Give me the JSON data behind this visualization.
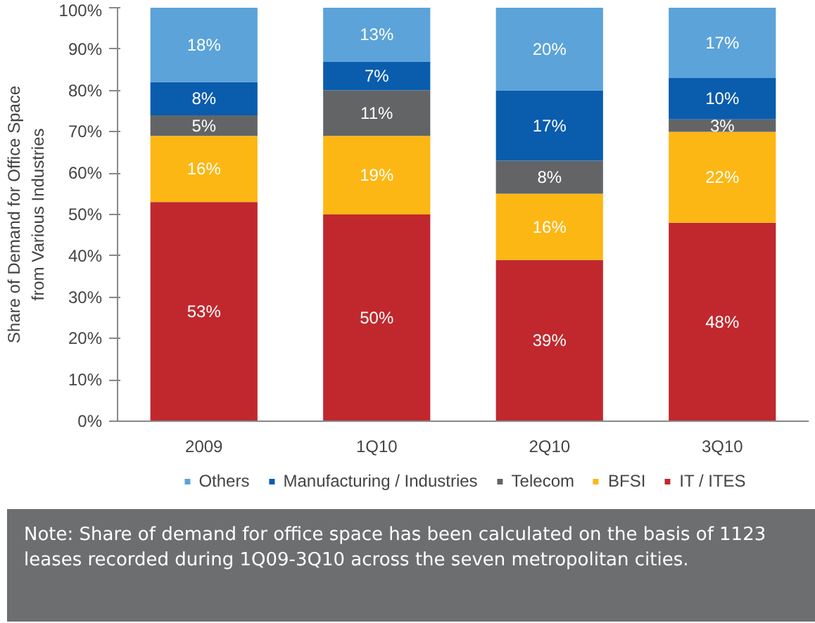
{
  "chart_data": {
    "type": "bar",
    "stacked": true,
    "ylabel": "Share of Demand for Office Space\nfrom Various Industries",
    "categories": [
      "2009",
      "1Q10",
      "2Q10",
      "3Q10"
    ],
    "series": [
      {
        "name": "IT / ITES",
        "color": "#c0282d",
        "values": [
          53,
          50,
          39,
          48
        ],
        "value_labels": [
          "53%",
          "50%",
          "39%",
          "48%"
        ]
      },
      {
        "name": "BFSI",
        "color": "#fdb714",
        "values": [
          16,
          19,
          16,
          22
        ],
        "value_labels": [
          "16%",
          "19%",
          "16%",
          "22%"
        ]
      },
      {
        "name": "Telecom",
        "color": "#636466",
        "values": [
          5,
          11,
          8,
          3
        ],
        "value_labels": [
          "5%",
          "11%",
          "8%",
          "3%"
        ]
      },
      {
        "name": "Manufacturing / Industries",
        "color": "#0a5cad",
        "values": [
          8,
          7,
          17,
          10
        ],
        "value_labels": [
          "8%",
          "7%",
          "17%",
          "10%"
        ]
      },
      {
        "name": "Others",
        "color": "#5ba3d9",
        "values": [
          18,
          13,
          20,
          17
        ],
        "value_labels": [
          "18%",
          "13%",
          "20%",
          "17%"
        ]
      }
    ],
    "ylim": [
      0,
      100
    ],
    "yticks": [
      {
        "value": 0,
        "label": "0%"
      },
      {
        "value": 10,
        "label": "10%"
      },
      {
        "value": 20,
        "label": "20%"
      },
      {
        "value": 30,
        "label": "30%"
      },
      {
        "value": 40,
        "label": "40%"
      },
      {
        "value": 50,
        "label": "50%"
      },
      {
        "value": 60,
        "label": "60%"
      },
      {
        "value": 70,
        "label": "70%"
      },
      {
        "value": 80,
        "label": "80%"
      },
      {
        "value": 90,
        "label": "90%"
      },
      {
        "value": 100,
        "label": "100%"
      }
    ],
    "grid": false,
    "legend": "bottom",
    "annotations": [
      "Note: Share of demand for office space has been calculated on the basis of 1123 leases recorded during 1Q09-3Q10 across the seven metropolitan cities."
    ]
  }
}
